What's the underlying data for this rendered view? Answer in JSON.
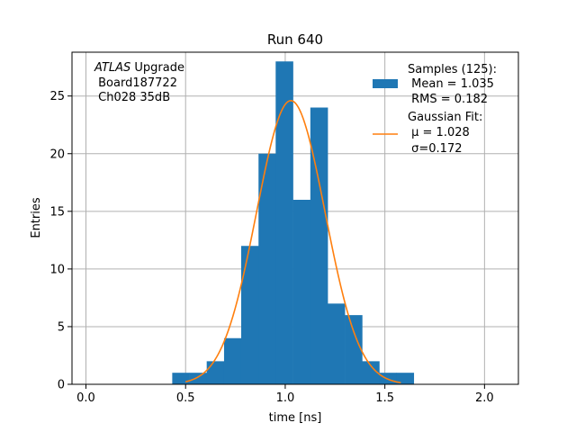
{
  "chart_data": {
    "type": "bar",
    "title": "Run 640",
    "xlabel": "time [ns]",
    "ylabel": "Entries",
    "xlim": [
      -0.07,
      2.17
    ],
    "ylim": [
      0,
      28.8
    ],
    "xticks": [
      0.0,
      0.5,
      1.0,
      1.5,
      2.0
    ],
    "xtick_labels": [
      "0.0",
      "0.5",
      "1.0",
      "1.5",
      "2.0"
    ],
    "yticks": [
      0,
      5,
      10,
      15,
      20,
      25
    ],
    "ytick_labels": [
      "0",
      "5",
      "10",
      "15",
      "20",
      "25"
    ],
    "grid": true,
    "bin_width": 0.0865,
    "bins": [
      {
        "x0": 0.433,
        "value": 1
      },
      {
        "x0": 0.52,
        "value": 1
      },
      {
        "x0": 0.606,
        "value": 2
      },
      {
        "x0": 0.693,
        "value": 4
      },
      {
        "x0": 0.779,
        "value": 12
      },
      {
        "x0": 0.866,
        "value": 20
      },
      {
        "x0": 0.952,
        "value": 28
      },
      {
        "x0": 1.039,
        "value": 16
      },
      {
        "x0": 1.126,
        "value": 24
      },
      {
        "x0": 1.212,
        "value": 7
      },
      {
        "x0": 1.299,
        "value": 6
      },
      {
        "x0": 1.385,
        "value": 2
      },
      {
        "x0": 1.472,
        "value": 1
      },
      {
        "x0": 1.558,
        "value": 1
      }
    ],
    "fit": {
      "mu": 1.028,
      "sigma": 0.172,
      "amplitude": 24.6,
      "x_range": [
        0.5,
        1.58
      ]
    },
    "colors": {
      "bars": "#1f77b4",
      "fit": "#ff7f0e",
      "grid": "#b0b0b0"
    },
    "annotation": {
      "italic": "ATLAS",
      "rest": " Upgrade",
      "line2": " Board187722",
      "line3": " Ch028 35dB"
    },
    "legend": {
      "position": "top-right",
      "samples": {
        "line1": "Samples (125):",
        "line2": " Mean = 1.035",
        "line3": " RMS = 0.182"
      },
      "fit_entry": {
        "line1": "Gaussian Fit:",
        "line2": " μ = 1.028",
        "line3": " σ=0.172"
      }
    }
  }
}
